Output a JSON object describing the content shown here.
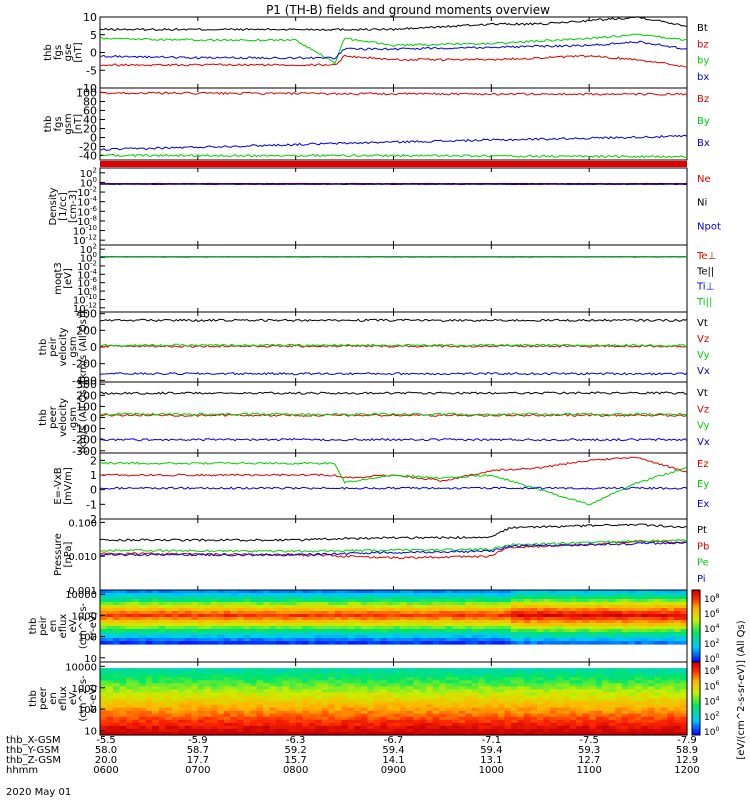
{
  "title": "P1 (TH-B) fields and ground moments overview",
  "date_label": "2020 May 01",
  "orbit": {
    "labels": [
      "thb_X-GSM",
      "thb_Y-GSM",
      "thb_Z-GSM",
      "hhmm"
    ],
    "ticks": [
      {
        "x": "-5.5",
        "y": "58.0",
        "z": "20.0",
        "t": "0600"
      },
      {
        "x": "-5.9",
        "y": "58.7",
        "z": "17.7",
        "t": "0700"
      },
      {
        "x": "-6.3",
        "y": "59.2",
        "z": "15.7",
        "t": "0800"
      },
      {
        "x": "-6.7",
        "y": "59.4",
        "z": "14.1",
        "t": "0900"
      },
      {
        "x": "-7.1",
        "y": "59.4",
        "z": "13.1",
        "t": "1000"
      },
      {
        "x": "-7.5",
        "y": "59.3",
        "z": "12.7",
        "t": "1100"
      },
      {
        "x": "-7.9",
        "y": "58.9",
        "z": "12.9",
        "t": "1200"
      }
    ]
  },
  "colorbar": {
    "label": "[eV/(cm^2-s-sr-eV)] (All Qs)",
    "top_labels": [
      "10^8",
      "10^6",
      "10^4",
      "10^2",
      "10^0"
    ],
    "bottom_labels": [
      "10^8",
      "10^6",
      "10^4",
      "10^2",
      "10^0"
    ]
  },
  "colors": {
    "black": "#000000",
    "red": "#e00000",
    "green": "#00d000",
    "blue": "#0000e0",
    "yellow": "#d0d000"
  },
  "chart_data": [
    {
      "type": "line",
      "panel": "fgs_gse",
      "ylabel": [
        "thb",
        "fgs",
        "gse",
        "[nT]"
      ],
      "ylim": [
        -10,
        10
      ],
      "yticks": [
        -10,
        -5,
        0,
        5,
        10
      ],
      "series": [
        {
          "name": "Bt",
          "color": "black",
          "x": [
            0,
            1,
            2,
            2.4,
            3,
            4,
            4.5,
            5,
            5.5,
            6
          ],
          "values": [
            6.5,
            6.5,
            6.5,
            6.5,
            6.5,
            8,
            8,
            9,
            10,
            7.5
          ]
        },
        {
          "name": "bz",
          "color": "red",
          "x": [
            0,
            1,
            2,
            2.4,
            2.5,
            3,
            4,
            5,
            5.5,
            6
          ],
          "values": [
            -3.5,
            -3.5,
            -3.5,
            -3.5,
            -1,
            -2,
            -2,
            -1,
            -2,
            -4
          ]
        },
        {
          "name": "by",
          "color": "green",
          "x": [
            0,
            1,
            2,
            2.4,
            2.5,
            3,
            4,
            5,
            5.5,
            6
          ],
          "values": [
            4,
            3.5,
            3.5,
            -3,
            4,
            2,
            2.5,
            4,
            5,
            3.5
          ]
        },
        {
          "name": "bx",
          "color": "blue",
          "x": [
            0,
            1,
            2,
            2.4,
            2.5,
            3,
            4,
            5,
            5.5,
            6
          ],
          "values": [
            -1,
            -1.5,
            -1.5,
            -1.5,
            1,
            1,
            1.5,
            2,
            3,
            1
          ]
        }
      ]
    },
    {
      "type": "line",
      "panel": "fgs_gsm",
      "ylabel": [
        "thb",
        "fgs",
        "gsm",
        "[nT]"
      ],
      "ylim": [
        -50,
        110
      ],
      "yticks": [
        -40,
        -20,
        0,
        20,
        40,
        60,
        80,
        100
      ],
      "series": [
        {
          "name": "Bz",
          "color": "red",
          "x": [
            0,
            3,
            6
          ],
          "values": [
            99,
            97,
            96
          ]
        },
        {
          "name": "By",
          "color": "green",
          "x": [
            0,
            3,
            6
          ],
          "values": [
            -40,
            -40,
            -43
          ]
        },
        {
          "name": "Bx",
          "color": "blue",
          "x": [
            0,
            3,
            6
          ],
          "values": [
            -27,
            -10,
            3
          ]
        }
      ]
    },
    {
      "type": "line",
      "panel": "density",
      "ylabel": [
        "Density",
        "[1/cc]",
        "[cm-3]"
      ],
      "ylim_log10": [
        -13,
        3
      ],
      "yticks": [
        "10^2",
        "10^0",
        "10^-2",
        "10^-4",
        "10^-6",
        "10^-8",
        "10^-10",
        "10^-12"
      ],
      "series": [
        {
          "name": "Ne",
          "color": "red",
          "x": [
            0,
            6
          ],
          "values": [
            0.6,
            0.6
          ]
        },
        {
          "name": "Ni",
          "color": "black",
          "x": [
            0,
            6
          ],
          "values": [
            0.5,
            0.5
          ]
        },
        {
          "name": "Npot",
          "color": "blue",
          "x": [
            0,
            6
          ],
          "values": [
            0.4,
            0.4
          ]
        }
      ]
    },
    {
      "type": "line",
      "panel": "temperature",
      "ylabel": [
        "moqt3",
        "[eV]"
      ],
      "ylim_log10": [
        -13,
        3
      ],
      "yticks": [
        "10^2",
        "10^0",
        "10^-2",
        "10^-4",
        "10^-6",
        "10^-8",
        "10^-10",
        "10^-12"
      ],
      "series": [
        {
          "name": "Te⊥",
          "color": "red",
          "x": [
            0,
            6
          ],
          "values": [
            1.5,
            1.5
          ]
        },
        {
          "name": "Te||",
          "color": "black",
          "x": [
            0,
            6
          ],
          "values": [
            1.4,
            1.4
          ]
        },
        {
          "name": "Ti⊥",
          "color": "blue",
          "x": [
            0,
            6
          ],
          "values": [
            1.6,
            1.6
          ]
        },
        {
          "name": "Ti||",
          "color": "green",
          "x": [
            0,
            6
          ],
          "values": [
            1.5,
            1.5
          ]
        }
      ]
    },
    {
      "type": "line",
      "panel": "peir_velocity",
      "ylabel": [
        "thb",
        "peir",
        "velocity",
        "gsm",
        "[km/s (All Qs)]"
      ],
      "ylim": [
        -420,
        420
      ],
      "yticks": [
        -400,
        -200,
        0,
        200,
        400
      ],
      "series": [
        {
          "name": "Vt",
          "color": "black",
          "x": [
            0,
            6
          ],
          "values": [
            320,
            320
          ]
        },
        {
          "name": "Vz",
          "color": "red",
          "x": [
            0,
            6
          ],
          "values": [
            10,
            10
          ]
        },
        {
          "name": "Vy",
          "color": "green",
          "x": [
            0,
            6
          ],
          "values": [
            20,
            20
          ]
        },
        {
          "name": "Vx",
          "color": "blue",
          "x": [
            0,
            6
          ],
          "values": [
            -320,
            -320
          ]
        }
      ]
    },
    {
      "type": "line",
      "panel": "peer_velocity",
      "ylabel": [
        "thb",
        "peer",
        "velocity",
        "gsm",
        "[km/s (All Qs)]"
      ],
      "ylim": [
        -320,
        320
      ],
      "yticks": [
        -300,
        -200,
        -100,
        0,
        100,
        200,
        300
      ],
      "series": [
        {
          "name": "Vt",
          "color": "black",
          "x": [
            0,
            6
          ],
          "values": [
            220,
            220
          ]
        },
        {
          "name": "Vz",
          "color": "red",
          "x": [
            0,
            6
          ],
          "values": [
            20,
            20
          ]
        },
        {
          "name": "Vy",
          "color": "green",
          "x": [
            0,
            6
          ],
          "values": [
            30,
            30
          ]
        },
        {
          "name": "Vx",
          "color": "blue",
          "x": [
            0,
            6
          ],
          "values": [
            -200,
            -200
          ]
        }
      ]
    },
    {
      "type": "line",
      "panel": "efield",
      "ylabel": [
        "E=-VxB",
        "[mV/m]"
      ],
      "ylim": [
        -2,
        2.5
      ],
      "yticks": [
        -2,
        -1,
        0,
        1,
        2
      ],
      "series": [
        {
          "name": "Ez",
          "color": "red",
          "x": [
            0,
            1,
            2,
            2.4,
            2.5,
            3,
            3.5,
            4,
            4.5,
            5,
            5.5,
            6
          ],
          "values": [
            1,
            1,
            1,
            1,
            0.8,
            1,
            0.6,
            1.3,
            1.5,
            2,
            2.2,
            1.2
          ]
        },
        {
          "name": "Ey",
          "color": "green",
          "x": [
            0,
            1,
            2,
            2.4,
            2.5,
            3,
            3.5,
            4,
            4.5,
            5,
            5.5,
            6
          ],
          "values": [
            1.8,
            1.8,
            1.8,
            1.8,
            0.5,
            1,
            0.8,
            1,
            0,
            -1,
            0.5,
            1.5
          ]
        },
        {
          "name": "Ex",
          "color": "blue",
          "x": [
            0,
            6
          ],
          "values": [
            0.1,
            0.1
          ]
        }
      ]
    },
    {
      "type": "line",
      "panel": "pressure",
      "ylabel": [
        "Pressure",
        "[nPa]"
      ],
      "ylim_log10": [
        -3,
        -0.9
      ],
      "yticks": [
        "0.100",
        "0.010",
        "0.001"
      ],
      "series": [
        {
          "name": "Pt",
          "color": "black",
          "x": [
            0,
            2,
            2.4,
            3,
            4,
            4.2,
            5,
            5.5,
            6
          ],
          "values": [
            0.03,
            0.03,
            0.033,
            0.035,
            0.036,
            0.07,
            0.08,
            0.085,
            0.07
          ]
        },
        {
          "name": "Pb",
          "color": "red",
          "x": [
            0,
            2,
            3,
            4,
            4.2,
            5,
            5.5,
            6
          ],
          "values": [
            0.012,
            0.011,
            0.009,
            0.01,
            0.018,
            0.022,
            0.028,
            0.025
          ]
        },
        {
          "name": "Pe",
          "color": "green",
          "x": [
            0,
            2,
            3,
            4,
            4.2,
            5,
            5.5,
            6
          ],
          "values": [
            0.015,
            0.014,
            0.015,
            0.016,
            0.022,
            0.025,
            0.028,
            0.03
          ]
        },
        {
          "name": "Pi",
          "color": "blue",
          "x": [
            0,
            2,
            3,
            4,
            4.2,
            5,
            6
          ],
          "values": [
            0.011,
            0.011,
            0.013,
            0.014,
            0.02,
            0.022,
            0.025
          ]
        }
      ]
    },
    {
      "type": "heatmap",
      "panel": "peir_eflux",
      "ylabel": [
        "thb",
        "peir",
        "en",
        "eflux",
        "eV",
        "(cm^2-s-",
        "sr-eV)"
      ],
      "yticks": [
        "10000",
        "1000",
        "100",
        "10"
      ]
    },
    {
      "type": "heatmap",
      "panel": "peer_eflux",
      "ylabel": [
        "thb",
        "peer",
        "en",
        "eflux",
        "eV",
        "(cm^2-s-",
        "sr-eV)"
      ],
      "yticks": [
        "10000",
        "1000",
        "100",
        "10"
      ]
    }
  ]
}
